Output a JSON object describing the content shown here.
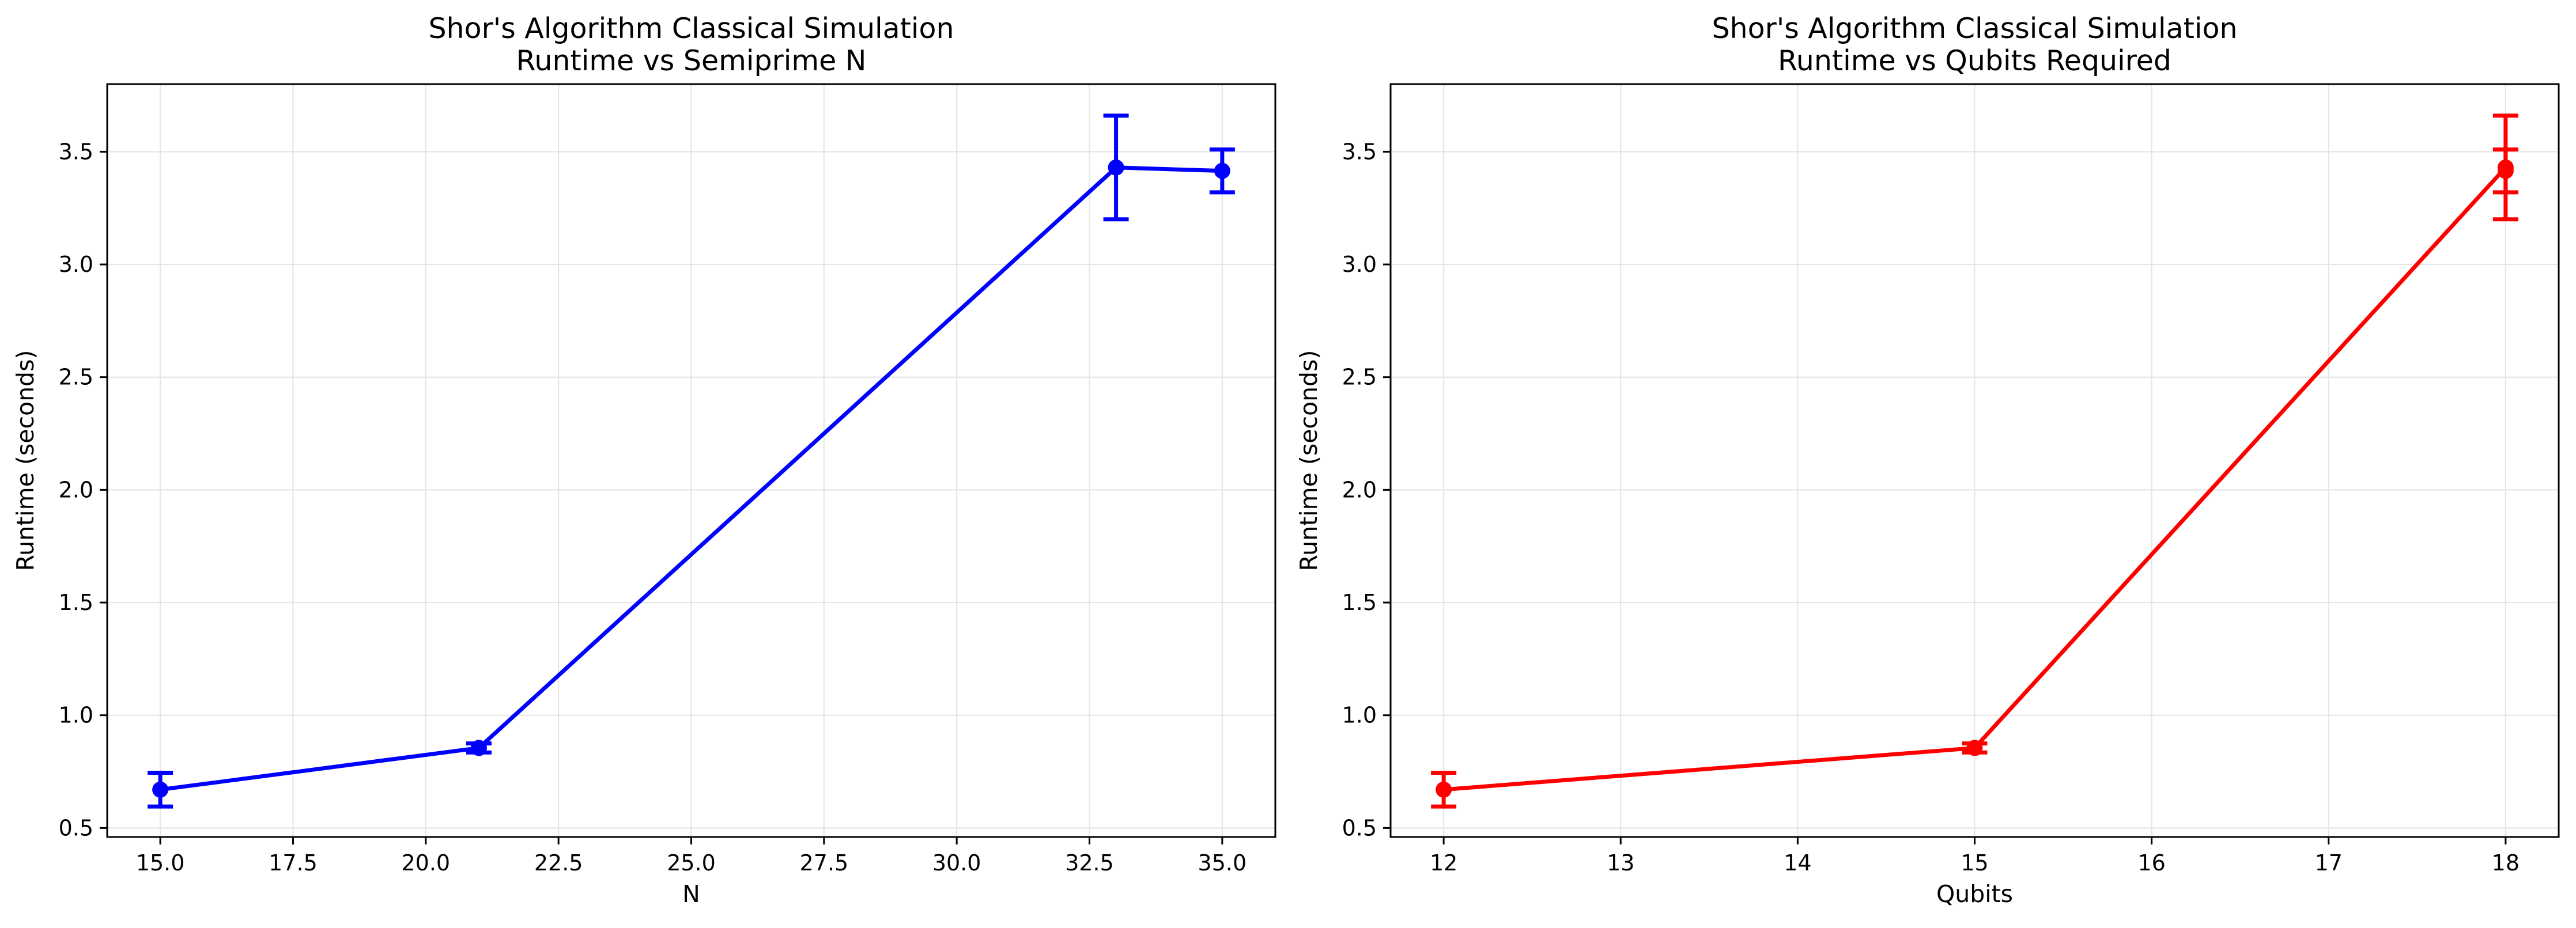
{
  "chart_data": [
    {
      "type": "line",
      "title": "Shor's Algorithm Classical Simulation\nRuntime vs Semiprime N",
      "title_lines": [
        "Shor's Algorithm Classical Simulation",
        "Runtime vs Semiprime N"
      ],
      "xlabel": "N",
      "ylabel": "Runtime (seconds)",
      "xlim": [
        14.0,
        36.0
      ],
      "ylim": [
        0.46,
        3.8
      ],
      "xticks": [
        15.0,
        17.5,
        20.0,
        22.5,
        25.0,
        27.5,
        30.0,
        32.5,
        35.0
      ],
      "xtick_labels": [
        "15.0",
        "17.5",
        "20.0",
        "22.5",
        "25.0",
        "27.5",
        "30.0",
        "32.5",
        "35.0"
      ],
      "yticks": [
        0.5,
        1.0,
        1.5,
        2.0,
        2.5,
        3.0,
        3.5
      ],
      "ytick_labels": [
        "0.5",
        "1.0",
        "1.5",
        "2.0",
        "2.5",
        "3.0",
        "3.5"
      ],
      "grid": true,
      "color": "#0000ff",
      "series": [
        {
          "x": [
            15,
            21,
            33,
            35
          ],
          "y": [
            0.67,
            0.855,
            3.43,
            3.415
          ],
          "yerr": [
            0.075,
            0.02,
            0.23,
            0.095
          ]
        }
      ]
    },
    {
      "type": "line",
      "title": "Shor's Algorithm Classical Simulation\nRuntime vs Qubits Required",
      "title_lines": [
        "Shor's Algorithm Classical Simulation",
        "Runtime vs Qubits Required"
      ],
      "xlabel": "Qubits",
      "ylabel": "Runtime (seconds)",
      "xlim": [
        11.7,
        18.3
      ],
      "ylim": [
        0.46,
        3.8
      ],
      "xticks": [
        12,
        13,
        14,
        15,
        16,
        17,
        18
      ],
      "xtick_labels": [
        "12",
        "13",
        "14",
        "15",
        "16",
        "17",
        "18"
      ],
      "yticks": [
        0.5,
        1.0,
        1.5,
        2.0,
        2.5,
        3.0,
        3.5
      ],
      "ytick_labels": [
        "0.5",
        "1.0",
        "1.5",
        "2.0",
        "2.5",
        "3.0",
        "3.5"
      ],
      "grid": true,
      "color": "#ff0000",
      "series": [
        {
          "x": [
            12,
            15,
            18,
            18
          ],
          "y": [
            0.67,
            0.855,
            3.43,
            3.415
          ],
          "yerr": [
            0.075,
            0.02,
            0.23,
            0.095
          ]
        }
      ]
    }
  ]
}
